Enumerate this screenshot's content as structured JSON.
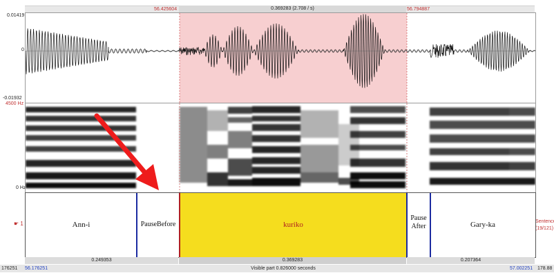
{
  "toolbar": {
    "sel_start": "56.425604",
    "sel_duration": "0.369283 (2.708 / s)",
    "sel_end": "56.794887"
  },
  "waveform": {
    "y_max": "0.01419",
    "y_zero": "0",
    "y_min": "-0.01932"
  },
  "spectrogram": {
    "f_max": "4500 Hz",
    "f_min": "0 Hz"
  },
  "tier": {
    "number": "1",
    "name": "Sentence",
    "count": "(19/121)",
    "intervals": [
      "Ann-i",
      "PauseBefore",
      "kuriko",
      "Pause",
      "After",
      "Gary-ka"
    ]
  },
  "bottom": {
    "left_duration": "0.249353",
    "sel_duration": "0.369283",
    "right_duration": "0.207364",
    "left_edge_cut": "176251",
    "window_start": "56.176251",
    "visible_part": "Visible part 0.826000 seconds",
    "window_end": "57.002251",
    "right_edge_cut": "178.88"
  },
  "colors": {
    "selection_waveform": "#f7cfd0",
    "selection_interval": "#f5dd1e",
    "boundary": "#1a2aa0",
    "arrow": "#ee1c1c",
    "selected_label": "#b02020"
  }
}
